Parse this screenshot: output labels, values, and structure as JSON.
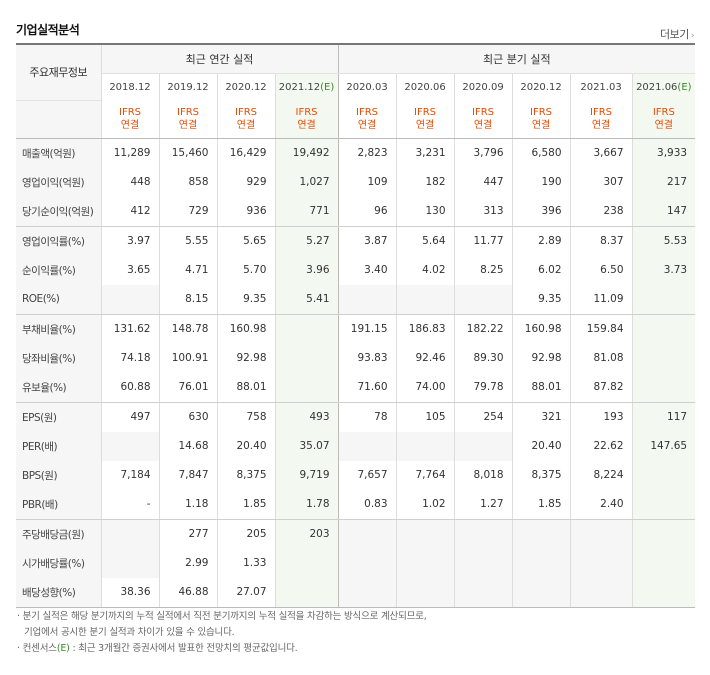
{
  "title": "기업실적분석",
  "more_label": "더보기",
  "header": {
    "corner_label": "주요재무정보",
    "annual_label": "최근 연간 실적",
    "quarter_label": "최근 분기 실적",
    "ifrs_line1": "IFRS",
    "ifrs_line2": "연결",
    "columns": [
      {
        "period": "2018.12",
        "est": ""
      },
      {
        "period": "2019.12",
        "est": ""
      },
      {
        "period": "2020.12",
        "est": ""
      },
      {
        "period": "2021.12",
        "est": "(E)"
      },
      {
        "period": "2020.03",
        "est": ""
      },
      {
        "period": "2020.06",
        "est": ""
      },
      {
        "period": "2020.09",
        "est": ""
      },
      {
        "period": "2020.12",
        "est": ""
      },
      {
        "period": "2021.03",
        "est": ""
      },
      {
        "period": "2021.06",
        "est": "(E)"
      }
    ]
  },
  "rows": [
    {
      "label": "매출액(억원)",
      "values": [
        "11,289",
        "15,460",
        "16,429",
        "19,492",
        "2,823",
        "3,231",
        "3,796",
        "6,580",
        "3,667",
        "3,933"
      ]
    },
    {
      "label": "영업이익(억원)",
      "values": [
        "448",
        "858",
        "929",
        "1,027",
        "109",
        "182",
        "447",
        "190",
        "307",
        "217"
      ]
    },
    {
      "label": "당기순이익(억원)",
      "values": [
        "412",
        "729",
        "936",
        "771",
        "96",
        "130",
        "313",
        "396",
        "238",
        "147"
      ]
    },
    {
      "label": "영업이익률(%)",
      "values": [
        "3.97",
        "5.55",
        "5.65",
        "5.27",
        "3.87",
        "5.64",
        "11.77",
        "2.89",
        "8.37",
        "5.53"
      ]
    },
    {
      "label": "순이익률(%)",
      "values": [
        "3.65",
        "4.71",
        "5.70",
        "3.96",
        "3.40",
        "4.02",
        "8.25",
        "6.02",
        "6.50",
        "3.73"
      ]
    },
    {
      "label": "ROE(%)",
      "values": [
        "",
        "8.15",
        "9.35",
        "5.41",
        "",
        "",
        "",
        "9.35",
        "11.09",
        ""
      ]
    },
    {
      "label": "부채비율(%)",
      "values": [
        "131.62",
        "148.78",
        "160.98",
        "",
        "191.15",
        "186.83",
        "182.22",
        "160.98",
        "159.84",
        ""
      ]
    },
    {
      "label": "당좌비율(%)",
      "values": [
        "74.18",
        "100.91",
        "92.98",
        "",
        "93.83",
        "92.46",
        "89.30",
        "92.98",
        "81.08",
        ""
      ]
    },
    {
      "label": "유보율(%)",
      "values": [
        "60.88",
        "76.01",
        "88.01",
        "",
        "71.60",
        "74.00",
        "79.78",
        "88.01",
        "87.82",
        ""
      ]
    },
    {
      "label": "EPS(원)",
      "values": [
        "497",
        "630",
        "758",
        "493",
        "78",
        "105",
        "254",
        "321",
        "193",
        "117"
      ]
    },
    {
      "label": "PER(배)",
      "values": [
        "",
        "14.68",
        "20.40",
        "35.07",
        "",
        "",
        "",
        "20.40",
        "22.62",
        "147.65"
      ]
    },
    {
      "label": "BPS(원)",
      "values": [
        "7,184",
        "7,847",
        "8,375",
        "9,719",
        "7,657",
        "7,764",
        "8,018",
        "8,375",
        "8,224",
        ""
      ]
    },
    {
      "label": "PBR(배)",
      "values": [
        "-",
        "1.18",
        "1.85",
        "1.78",
        "0.83",
        "1.02",
        "1.27",
        "1.85",
        "2.40",
        ""
      ]
    },
    {
      "label": "주당배당금(원)",
      "values": [
        "",
        "277",
        "205",
        "203",
        "",
        "",
        "",
        "",
        "",
        ""
      ]
    },
    {
      "label": "시가배당률(%)",
      "values": [
        "",
        "2.99",
        "1.33",
        "",
        "",
        "",
        "",
        "",
        "",
        ""
      ]
    },
    {
      "label": "배당성향(%)",
      "values": [
        "38.36",
        "46.88",
        "27.07",
        "",
        "",
        "",
        "",
        "",
        "",
        ""
      ]
    }
  ],
  "notes": {
    "line1": "· 분기 실적은 해당 분기까지의 누적 실적에서 직전 분기까지의 누적 실적을 차감하는 방식으로 계산되므로,",
    "line2": "기업에서 공시한 분기 실적과 차이가 있을 수 있습니다.",
    "line3_prefix": "· 컨센서스",
    "line3_est": "(E)",
    "line3_suffix": " : 최근 3개월간 증권사에서 발표한 전망치의 평균값입니다."
  },
  "colors": {
    "ifrs": "#e64b00",
    "estimate": "#3a8a2a",
    "header_bg": "#f6f6f6",
    "estimate_bg": "#f3f8f0"
  }
}
